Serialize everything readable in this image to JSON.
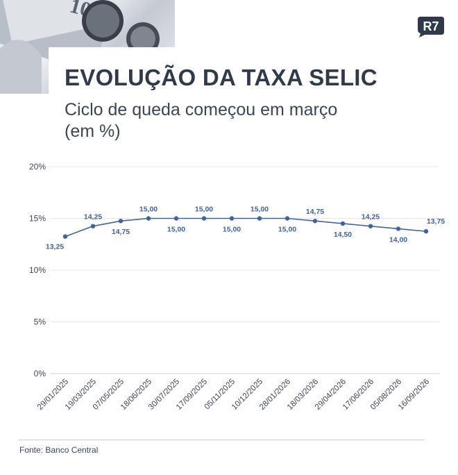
{
  "header": {
    "title": "EVOLUÇÃO DA TAXA SELIC",
    "subtitle": "Ciclo de queda começou em março (em %)",
    "logo_text": "R7"
  },
  "footer": {
    "source": "Fonte: Banco Central"
  },
  "colors": {
    "series": "#3f62a3",
    "title": "#2f3b4d",
    "grid": "#e5e7eb",
    "axis": "#c9ccd2",
    "text": "#3b4557"
  },
  "chart_data": {
    "type": "line",
    "x": [
      "29/01/2025",
      "19/03/2025",
      "07/05/2025",
      "18/06/2025",
      "30/07/2025",
      "17/09/2025",
      "05/11/2025",
      "10/12/2025",
      "28/01/2026",
      "18/03/2026",
      "29/04/2026",
      "17/06/2026",
      "05/08/2026",
      "16/09/2026"
    ],
    "values": [
      13.25,
      14.25,
      14.75,
      15.0,
      15.0,
      15.0,
      15.0,
      15.0,
      15.0,
      14.75,
      14.5,
      14.25,
      14.0,
      13.75
    ],
    "data_labels": [
      "13,25",
      "14,25",
      "14,75",
      "15,00",
      "15,00",
      "15,00",
      "15,00",
      "15,00",
      "15,00",
      "14,75",
      "14,50",
      "14,25",
      "14,00",
      "13,75"
    ],
    "y_ticks": [
      0,
      5,
      10,
      15,
      20
    ],
    "y_tick_labels": [
      "0%",
      "5%",
      "10%",
      "15%",
      "20%"
    ],
    "ylim": [
      0,
      20
    ],
    "grid": true
  }
}
